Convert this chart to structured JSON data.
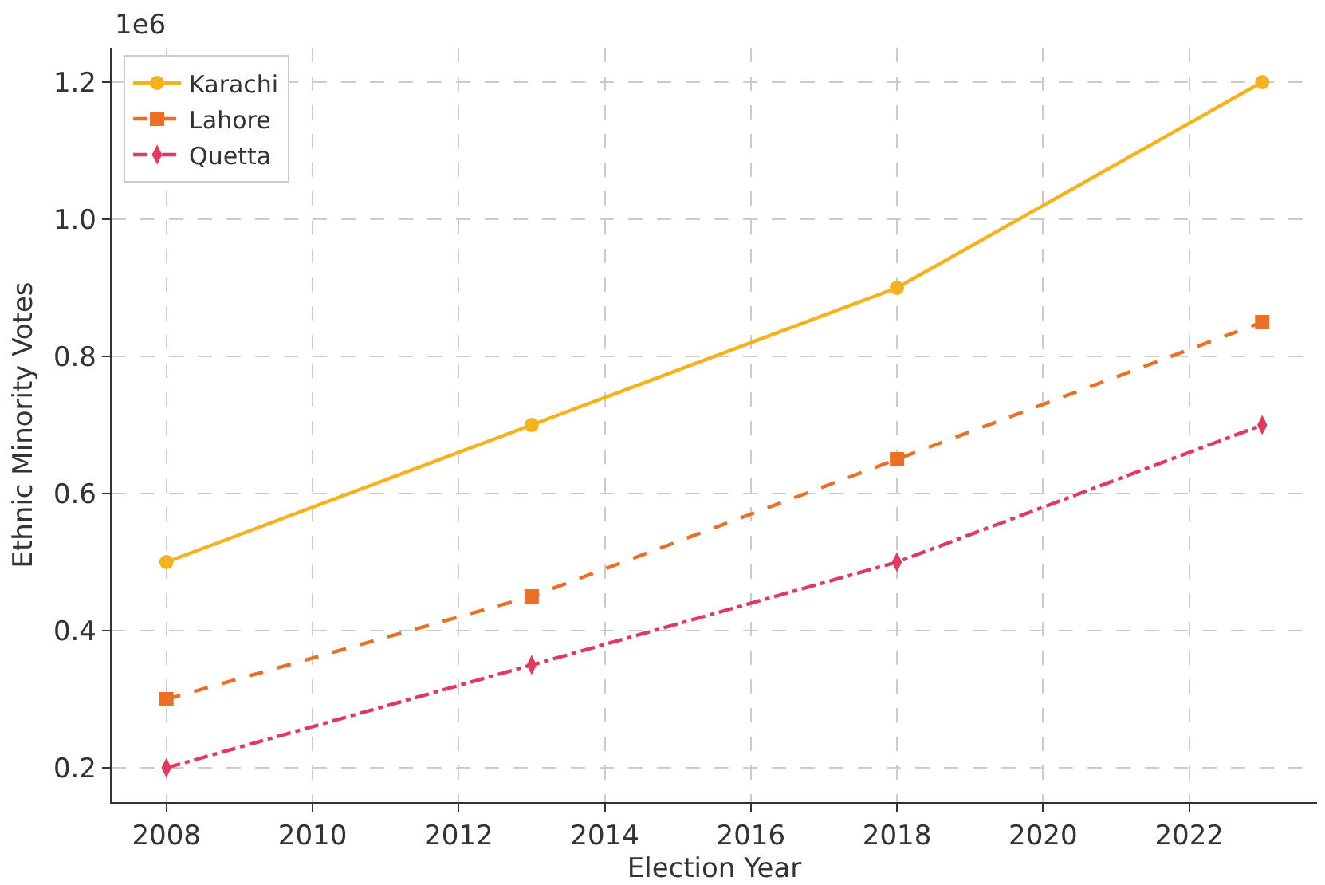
{
  "chart_data": {
    "type": "line",
    "xlabel": "Election Year",
    "ylabel": "Ethnic Minority Votes",
    "annotations": [
      "1e6"
    ],
    "x": [
      2008,
      2013,
      2018,
      2023
    ],
    "series": [
      {
        "name": "Karachi",
        "color": "#f5b21c",
        "values": [
          0.5,
          0.7,
          0.9,
          1.2
        ],
        "marker": "circle",
        "line_style": "solid"
      },
      {
        "name": "Lahore",
        "color": "#ec6f26",
        "values": [
          0.3,
          0.45,
          0.65,
          0.85
        ],
        "marker": "square",
        "line_style": "dashed"
      },
      {
        "name": "Quetta",
        "color": "#e23a5e",
        "values": [
          0.2,
          0.35,
          0.5,
          0.7
        ],
        "marker": "diamond",
        "line_style": "dashdot"
      }
    ],
    "xlim": [
      2007.25,
      2023.75
    ],
    "xticks": [
      2008,
      2010,
      2012,
      2014,
      2016,
      2018,
      2020,
      2022
    ],
    "ylim": [
      0.15,
      1.25
    ],
    "yticks": [
      0.2,
      0.4,
      0.6,
      0.8,
      {
        "value": 1,
        "label": "1.0"
      },
      1.2
    ],
    "grid": true,
    "legend": "top left"
  }
}
